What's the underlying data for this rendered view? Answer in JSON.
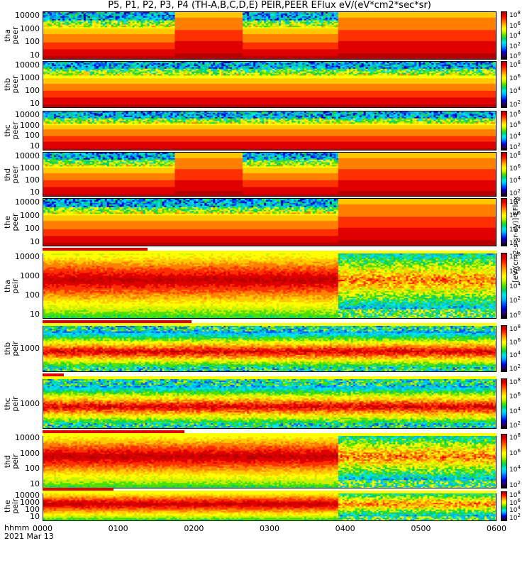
{
  "title": "P5, P1, P2, P3, P4 (TH-A,B,C,D,E) PEIR,PEER EFlux eV/(eV*cm2*sec*sr)",
  "x_label_top": "hhmm",
  "x_label_bottom": "2021 Mar 13",
  "x_ticks": [
    "0000",
    "0100",
    "0200",
    "0300",
    "0400",
    "0500",
    "0600"
  ],
  "units_label": "[eV/(cm2-s-sr-eV)] EFlux",
  "chart_data": {
    "type": "heatmap",
    "title": "P5, P1, P2, P3, P4 (TH-A,B,C,D,E) PEIR,PEER EFlux eV/(eV*cm2*sec*sr)",
    "xlabel": "hhmm",
    "x_range": [
      "0000",
      "0600"
    ],
    "date": "2021 Mar 13",
    "y_scale": "log",
    "colorbar_scale": "log",
    "colormap": "rainbow (black-blue-cyan-green-yellow-red)",
    "panels": [
      {
        "name": "tha peer",
        "label_line1": "tha",
        "label_line2": "peer",
        "yticks": [
          "10000",
          "1000",
          "100",
          "10"
        ],
        "cb_ticks": [
          "10^8",
          "10^6",
          "10^4",
          "10^2",
          "10^0"
        ]
      },
      {
        "name": "thb peer",
        "label_line1": "thb",
        "label_line2": "peer",
        "yticks": [
          "10000",
          "1000",
          "100",
          "10"
        ],
        "cb_ticks": [
          "10^8",
          "10^6",
          "10^4",
          "10^2"
        ]
      },
      {
        "name": "thc peer",
        "label_line1": "thc",
        "label_line2": "peer",
        "yticks": [
          "10000",
          "1000",
          "100",
          "10"
        ],
        "cb_ticks": [
          "10^8",
          "10^6",
          "10^4",
          "10^2"
        ]
      },
      {
        "name": "thd peer",
        "label_line1": "thd",
        "label_line2": "peer",
        "yticks": [
          "10000",
          "1000",
          "100",
          "10"
        ],
        "cb_ticks": [
          "10^8",
          "10^6",
          "10^4",
          "10^2"
        ]
      },
      {
        "name": "the peer",
        "label_line1": "the",
        "label_line2": "peer",
        "yticks": [
          "10000",
          "1000",
          "100",
          "10"
        ],
        "cb_ticks": [
          "10^8",
          "10^6",
          "10^4",
          "10^2"
        ]
      },
      {
        "name": "tha peir",
        "label_line1": "tha",
        "label_line2": "peir",
        "yticks": [
          "10000",
          "1000",
          "100",
          "10"
        ],
        "cb_ticks": [
          "10^8",
          "10^6",
          "10^4",
          "10^2",
          "10^0"
        ]
      },
      {
        "name": "thb peir",
        "label_line1": "thb",
        "label_line2": "peir",
        "yticks": [
          "1000"
        ],
        "cb_ticks": [
          "10^8",
          "10^6",
          "10^4",
          "10^2"
        ]
      },
      {
        "name": "thc peir",
        "label_line1": "thc",
        "label_line2": "peir",
        "yticks": [
          "1000"
        ],
        "cb_ticks": [
          "10^8",
          "10^6",
          "10^4",
          "10^2"
        ]
      },
      {
        "name": "thd peir",
        "label_line1": "thd",
        "label_line2": "peir",
        "yticks": [
          "10000",
          "1000",
          "100",
          "10"
        ],
        "cb_ticks": [
          "10^8",
          "10^6",
          "10^4",
          "10^2"
        ]
      },
      {
        "name": "the peir",
        "label_line1": "the",
        "label_line2": "peir",
        "yticks": [
          "10000",
          "1000",
          "100",
          "10"
        ],
        "cb_ticks": [
          "10^8",
          "10^6",
          "10^4",
          "10^2"
        ]
      }
    ]
  }
}
